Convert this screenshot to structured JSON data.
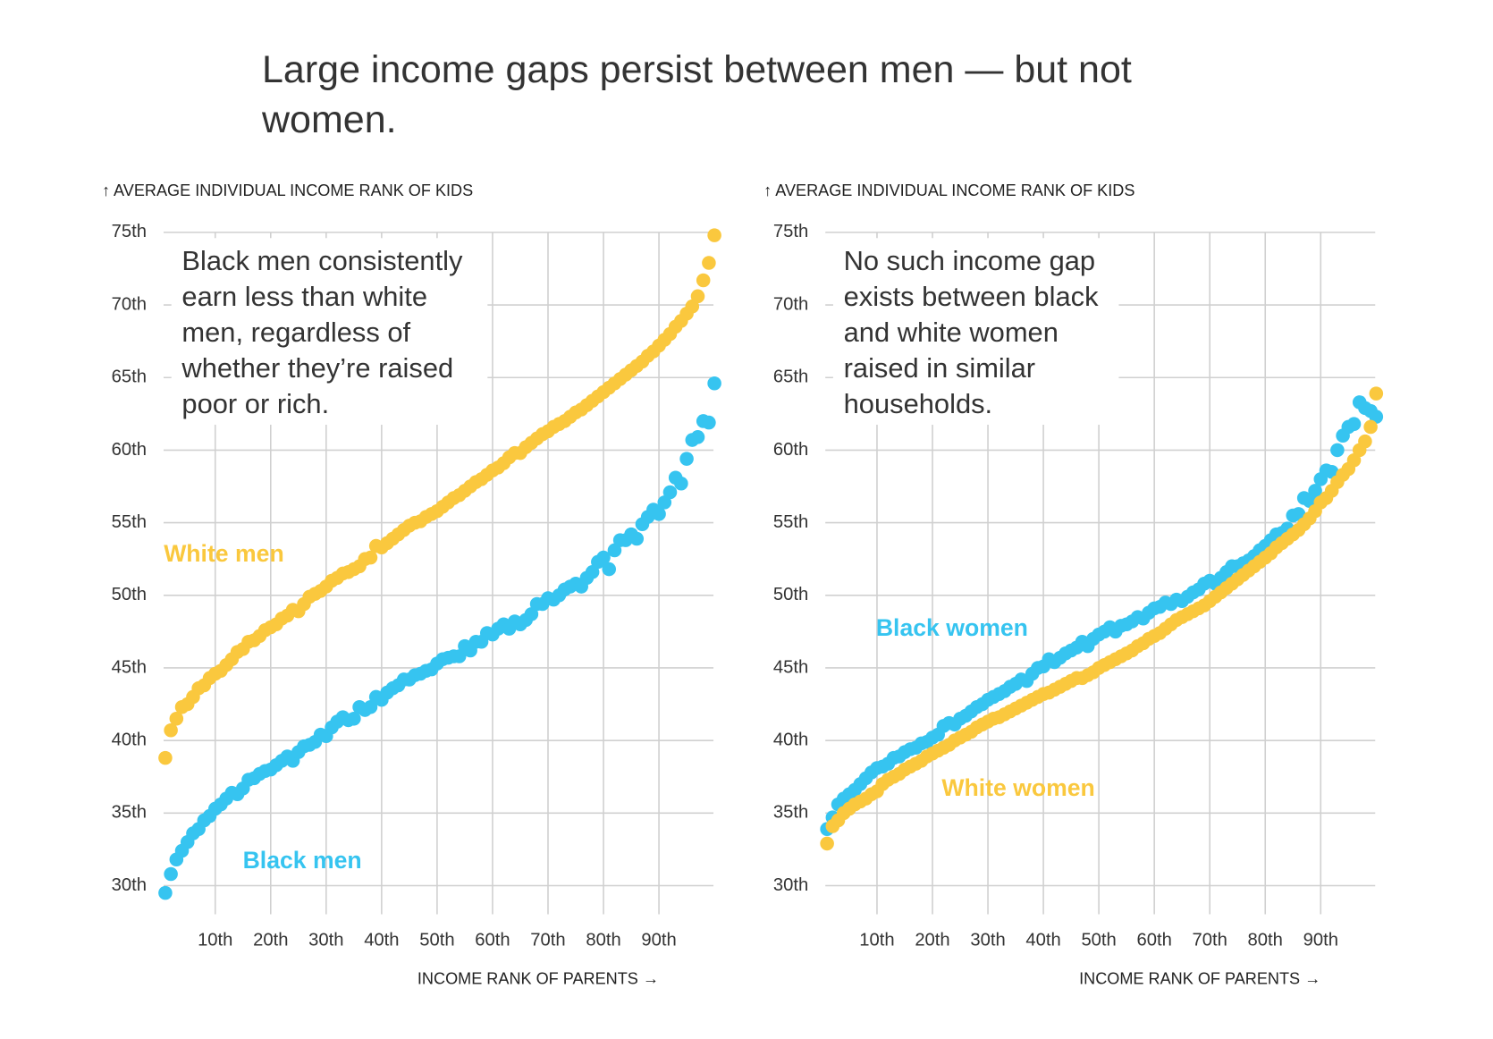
{
  "title": "Large income gaps persist between men — but not women.",
  "chart_data": [
    {
      "type": "scatter",
      "y_label": "↑ AVERAGE INDIVIDUAL INCOME RANK OF KIDS",
      "x_label": "INCOME RANK OF PARENTS →",
      "annotation": [
        "Black men consistently",
        "earn less than white",
        "men, regardless of",
        "whether they’re raised",
        "poor or rich."
      ],
      "xlim": [
        0,
        100
      ],
      "ylim": [
        28.5,
        75
      ],
      "xticks": [
        {
          "value": 10,
          "label": "10th"
        },
        {
          "value": 20,
          "label": "20th"
        },
        {
          "value": 30,
          "label": "30th"
        },
        {
          "value": 40,
          "label": "40th"
        },
        {
          "value": 50,
          "label": "50th"
        },
        {
          "value": 60,
          "label": "60th"
        },
        {
          "value": 70,
          "label": "70th"
        },
        {
          "value": 80,
          "label": "80th"
        },
        {
          "value": 90,
          "label": "90th"
        }
      ],
      "yticks": [
        {
          "value": 30,
          "label": "30th"
        },
        {
          "value": 35,
          "label": "35th"
        },
        {
          "value": 40,
          "label": "40th"
        },
        {
          "value": 45,
          "label": "45th"
        },
        {
          "value": 50,
          "label": "50th"
        },
        {
          "value": 55,
          "label": "55th"
        },
        {
          "value": 60,
          "label": "60th"
        },
        {
          "value": 65,
          "label": "65th"
        },
        {
          "value": 70,
          "label": "70th"
        },
        {
          "value": 75,
          "label": "75th"
        }
      ],
      "grid": true,
      "x": [
        1,
        2,
        3,
        4,
        5,
        6,
        7,
        8,
        9,
        10,
        11,
        12,
        13,
        14,
        15,
        16,
        17,
        18,
        19,
        20,
        21,
        22,
        23,
        24,
        25,
        26,
        27,
        28,
        29,
        30,
        31,
        32,
        33,
        34,
        35,
        36,
        37,
        38,
        39,
        40,
        41,
        42,
        43,
        44,
        45,
        46,
        47,
        48,
        49,
        50,
        51,
        52,
        53,
        54,
        55,
        56,
        57,
        58,
        59,
        60,
        61,
        62,
        63,
        64,
        65,
        66,
        67,
        68,
        69,
        70,
        71,
        72,
        73,
        74,
        75,
        76,
        77,
        78,
        79,
        80,
        81,
        82,
        83,
        84,
        85,
        86,
        87,
        88,
        89,
        90,
        91,
        92,
        93,
        94,
        95,
        96,
        97,
        98,
        99,
        100
      ],
      "series": [
        {
          "name": "White men",
          "color": "#fac83e",
          "values": [
            38.8,
            40.7,
            41.5,
            42.3,
            42.5,
            43.0,
            43.6,
            43.8,
            44.3,
            44.6,
            44.8,
            45.2,
            45.6,
            46.1,
            46.3,
            46.8,
            46.9,
            47.2,
            47.6,
            47.8,
            48.0,
            48.4,
            48.6,
            49.0,
            48.9,
            49.4,
            49.9,
            50.1,
            50.3,
            50.6,
            51.0,
            51.2,
            51.5,
            51.6,
            51.8,
            52.0,
            52.5,
            52.6,
            53.4,
            53.3,
            53.6,
            53.9,
            54.2,
            54.5,
            54.8,
            55.0,
            55.1,
            55.4,
            55.6,
            55.8,
            56.1,
            56.4,
            56.7,
            56.9,
            57.2,
            57.5,
            57.8,
            58.0,
            58.3,
            58.6,
            58.8,
            59.1,
            59.5,
            59.8,
            59.8,
            60.2,
            60.5,
            60.8,
            61.1,
            61.3,
            61.6,
            61.8,
            62.0,
            62.3,
            62.6,
            62.8,
            63.1,
            63.4,
            63.7,
            64.0,
            64.3,
            64.6,
            64.9,
            65.2,
            65.5,
            65.8,
            66.1,
            66.5,
            66.8,
            67.2,
            67.6,
            68.0,
            68.5,
            68.9,
            69.4,
            69.9,
            70.6,
            71.7,
            72.9,
            74.8
          ]
        },
        {
          "name": "Black men",
          "color": "#36c4f0",
          "values": [
            29.5,
            30.8,
            31.8,
            32.4,
            33.0,
            33.6,
            33.9,
            34.5,
            34.8,
            35.3,
            35.6,
            36.0,
            36.4,
            36.3,
            36.7,
            37.3,
            37.4,
            37.7,
            37.9,
            38.0,
            38.3,
            38.6,
            38.9,
            38.6,
            39.2,
            39.6,
            39.7,
            39.9,
            40.4,
            40.3,
            40.9,
            41.3,
            41.6,
            41.4,
            41.5,
            42.3,
            42.1,
            42.3,
            43.0,
            42.8,
            43.3,
            43.6,
            43.8,
            44.2,
            44.2,
            44.5,
            44.6,
            44.8,
            44.9,
            45.3,
            45.6,
            45.7,
            45.8,
            45.8,
            46.5,
            46.2,
            46.8,
            46.8,
            47.4,
            47.3,
            47.7,
            48.0,
            47.7,
            48.2,
            48.0,
            48.3,
            48.7,
            49.4,
            49.4,
            49.8,
            49.7,
            50.0,
            50.4,
            50.6,
            50.8,
            50.6,
            51.2,
            51.6,
            52.3,
            52.6,
            51.8,
            53.1,
            53.8,
            53.8,
            54.2,
            53.9,
            54.9,
            55.4,
            55.9,
            55.6,
            56.4,
            57.1,
            58.1,
            57.7,
            59.4,
            60.7,
            60.9,
            62.0,
            61.9,
            64.6
          ]
        }
      ]
    },
    {
      "type": "scatter",
      "y_label": "↑ AVERAGE INDIVIDUAL INCOME RANK OF KIDS",
      "x_label": "INCOME RANK OF PARENTS →",
      "annotation": [
        "No such income gap",
        "exists between black",
        "and white women",
        "raised in similar",
        "households."
      ],
      "xlim": [
        0,
        100
      ],
      "ylim": [
        28.5,
        75
      ],
      "xticks": [
        {
          "value": 10,
          "label": "10th"
        },
        {
          "value": 20,
          "label": "20th"
        },
        {
          "value": 30,
          "label": "30th"
        },
        {
          "value": 40,
          "label": "40th"
        },
        {
          "value": 50,
          "label": "50th"
        },
        {
          "value": 60,
          "label": "60th"
        },
        {
          "value": 70,
          "label": "70th"
        },
        {
          "value": 80,
          "label": "80th"
        },
        {
          "value": 90,
          "label": "90th"
        }
      ],
      "yticks": [
        {
          "value": 30,
          "label": "30th"
        },
        {
          "value": 35,
          "label": "35th"
        },
        {
          "value": 40,
          "label": "40th"
        },
        {
          "value": 45,
          "label": "45th"
        },
        {
          "value": 50,
          "label": "50th"
        },
        {
          "value": 55,
          "label": "55th"
        },
        {
          "value": 60,
          "label": "60th"
        },
        {
          "value": 65,
          "label": "65th"
        },
        {
          "value": 70,
          "label": "70th"
        },
        {
          "value": 75,
          "label": "75th"
        }
      ],
      "grid": true,
      "x": [
        1,
        2,
        3,
        4,
        5,
        6,
        7,
        8,
        9,
        10,
        11,
        12,
        13,
        14,
        15,
        16,
        17,
        18,
        19,
        20,
        21,
        22,
        23,
        24,
        25,
        26,
        27,
        28,
        29,
        30,
        31,
        32,
        33,
        34,
        35,
        36,
        37,
        38,
        39,
        40,
        41,
        42,
        43,
        44,
        45,
        46,
        47,
        48,
        49,
        50,
        51,
        52,
        53,
        54,
        55,
        56,
        57,
        58,
        59,
        60,
        61,
        62,
        63,
        64,
        65,
        66,
        67,
        68,
        69,
        70,
        71,
        72,
        73,
        74,
        75,
        76,
        77,
        78,
        79,
        80,
        81,
        82,
        83,
        84,
        85,
        86,
        87,
        88,
        89,
        90,
        91,
        92,
        93,
        94,
        95,
        96,
        97,
        98,
        99,
        100
      ],
      "series": [
        {
          "name": "Black women",
          "color": "#36c4f0",
          "values": [
            33.9,
            34.7,
            35.6,
            36.0,
            36.3,
            36.6,
            37.0,
            37.4,
            37.8,
            38.1,
            38.2,
            38.4,
            38.8,
            38.9,
            39.2,
            39.4,
            39.5,
            39.8,
            39.9,
            40.2,
            40.4,
            41.0,
            41.2,
            41.1,
            41.5,
            41.7,
            42.0,
            42.3,
            42.5,
            42.8,
            43.0,
            43.2,
            43.4,
            43.7,
            43.9,
            44.2,
            44.1,
            44.6,
            45.0,
            45.1,
            45.6,
            45.4,
            45.7,
            46.0,
            46.2,
            46.4,
            46.8,
            46.5,
            47.0,
            47.3,
            47.5,
            47.8,
            47.5,
            47.9,
            48.0,
            48.2,
            48.5,
            48.4,
            48.8,
            49.1,
            49.2,
            49.5,
            49.4,
            49.7,
            49.6,
            49.9,
            50.2,
            50.4,
            50.8,
            51.0,
            50.8,
            51.2,
            51.6,
            52.0,
            52.0,
            52.2,
            52.4,
            52.7,
            53.1,
            53.4,
            53.8,
            54.2,
            54.3,
            54.6,
            55.5,
            55.6,
            56.7,
            56.5,
            57.2,
            58.0,
            58.6,
            58.5,
            60.0,
            61.0,
            61.6,
            61.8,
            63.3,
            62.9,
            62.7,
            62.3
          ]
        },
        {
          "name": "White women",
          "color": "#fac83e",
          "values": [
            32.9,
            34.1,
            34.5,
            35.0,
            35.3,
            35.6,
            35.8,
            36.0,
            36.3,
            36.5,
            37.0,
            37.3,
            37.5,
            37.7,
            38.0,
            38.2,
            38.4,
            38.6,
            38.9,
            39.1,
            39.3,
            39.5,
            39.7,
            40.0,
            40.2,
            40.4,
            40.6,
            40.9,
            41.1,
            41.3,
            41.5,
            41.6,
            41.8,
            42.0,
            42.2,
            42.4,
            42.6,
            42.8,
            43.0,
            43.2,
            43.3,
            43.5,
            43.7,
            43.9,
            44.1,
            44.3,
            44.3,
            44.5,
            44.7,
            45.0,
            45.2,
            45.4,
            45.6,
            45.8,
            46.0,
            46.2,
            46.5,
            46.7,
            47.0,
            47.2,
            47.4,
            47.7,
            48.0,
            48.3,
            48.5,
            48.7,
            48.9,
            49.1,
            49.3,
            49.6,
            49.9,
            50.2,
            50.5,
            50.8,
            51.1,
            51.4,
            51.7,
            52.0,
            52.3,
            52.6,
            52.9,
            53.3,
            53.6,
            53.9,
            54.2,
            54.5,
            54.9,
            55.3,
            55.8,
            56.4,
            56.7,
            57.2,
            57.8,
            58.3,
            58.7,
            59.3,
            60.0,
            60.6,
            61.6,
            63.9
          ]
        }
      ]
    }
  ]
}
